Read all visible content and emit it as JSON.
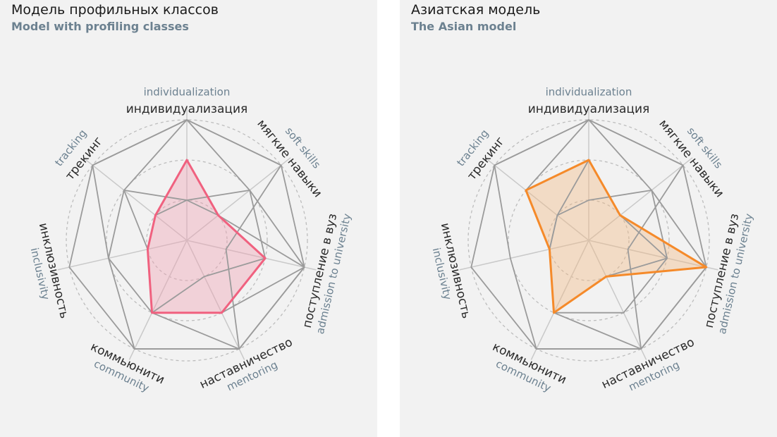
{
  "chart_data": [
    {
      "type": "radar",
      "title": "Модель профильных классов",
      "subtitle": "Model with profiling classes",
      "axes": [
        {
          "ru": "индивидуализация",
          "en": "individualization"
        },
        {
          "ru": "мягкие навыки",
          "en": "soft skills"
        },
        {
          "ru": "поступление в вуз",
          "en": "admission to university"
        },
        {
          "ru": "наставничество",
          "en": "mentoring"
        },
        {
          "ru": "коммьюнити",
          "en": "community"
        },
        {
          "ru": "инклюзивность",
          "en": "inclusivity"
        },
        {
          "ru": "трекинг",
          "en": "tracking"
        }
      ],
      "rlim": [
        0,
        3
      ],
      "grid_levels": [
        1,
        2,
        3
      ],
      "highlight": {
        "values": [
          2,
          1,
          2,
          2,
          2,
          1,
          1
        ],
        "color": "#f0617f",
        "fill": "#f0a0b2"
      },
      "background_series": [
        [
          3,
          3,
          3,
          3,
          3,
          3,
          3
        ],
        [
          3,
          2,
          3,
          3,
          3,
          2,
          3
        ],
        [
          3,
          3,
          1,
          3,
          2,
          1,
          2
        ],
        [
          1,
          2,
          2,
          1,
          2,
          1,
          1
        ],
        [
          1,
          1,
          3,
          2,
          2,
          2,
          2
        ]
      ],
      "background_color": "#9b9b9b"
    },
    {
      "type": "radar",
      "title": "Азиатская модель",
      "subtitle": "The Asian model",
      "axes": [
        {
          "ru": "индивидуализация",
          "en": "individualization"
        },
        {
          "ru": "мягкие навыки",
          "en": "soft skills"
        },
        {
          "ru": "поступление в вуз",
          "en": "admission to university"
        },
        {
          "ru": "наставничество",
          "en": "mentoring"
        },
        {
          "ru": "коммьюнити",
          "en": "community"
        },
        {
          "ru": "инклюзивность",
          "en": "inclusivity"
        },
        {
          "ru": "трекинг",
          "en": "tracking"
        }
      ],
      "rlim": [
        0,
        3
      ],
      "grid_levels": [
        1,
        2,
        3
      ],
      "highlight": {
        "values": [
          2,
          1,
          3,
          1,
          2,
          1,
          2
        ],
        "color": "#f58a2a",
        "fill": "#f2b883"
      },
      "background_series": [
        [
          3,
          3,
          3,
          3,
          3,
          3,
          3
        ],
        [
          3,
          2,
          3,
          3,
          3,
          2,
          3
        ],
        [
          3,
          3,
          1,
          3,
          2,
          1,
          2
        ],
        [
          1,
          2,
          2,
          1,
          2,
          1,
          1
        ],
        [
          2,
          1,
          2,
          2,
          2,
          1,
          1
        ]
      ],
      "background_color": "#9b9b9b"
    }
  ]
}
